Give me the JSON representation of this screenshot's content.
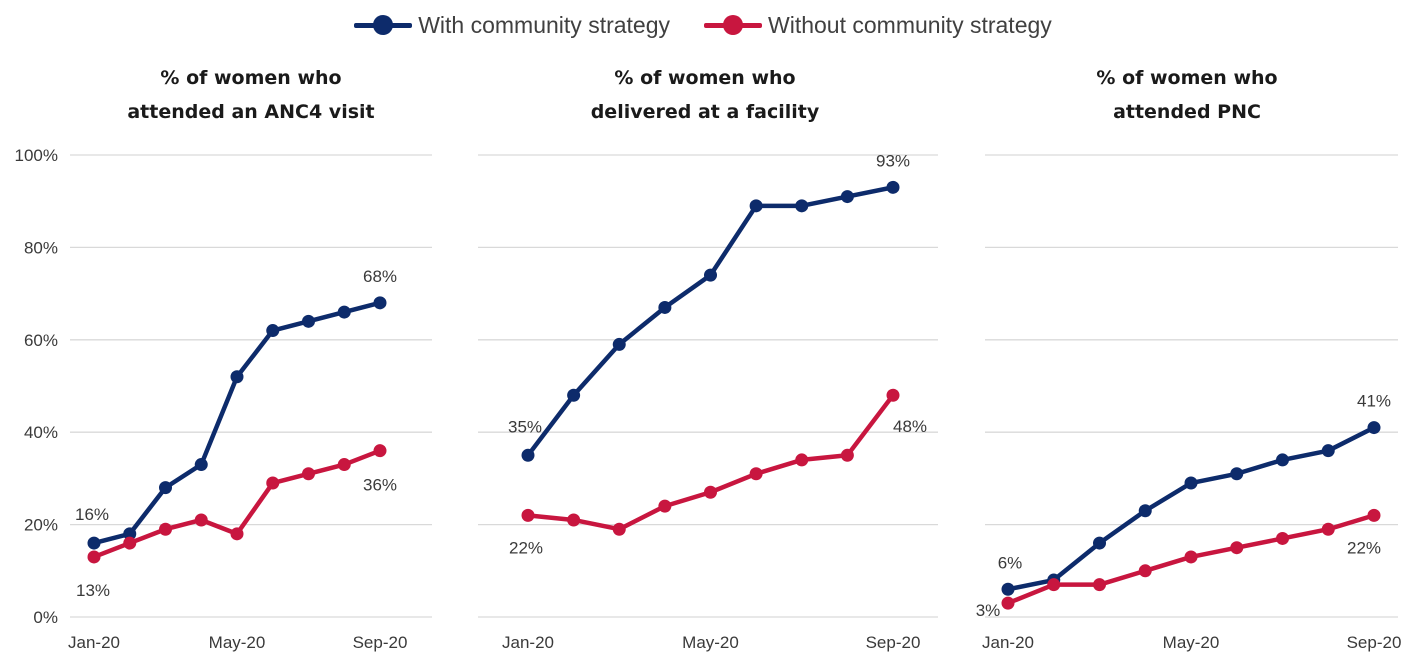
{
  "colors": {
    "with": "#0d2b6b",
    "without": "#c8163f",
    "grid": "#d9d9d9"
  },
  "legend": [
    {
      "label": "With community strategy",
      "color": "#0d2b6b"
    },
    {
      "label": "Without community strategy",
      "color": "#c8163f"
    }
  ],
  "chart_data": [
    {
      "type": "line",
      "title": [
        "% of women who",
        "attended an ANC4 visit"
      ],
      "ylim": [
        0,
        100
      ],
      "yticks": [
        "0%",
        "20%",
        "40%",
        "60%",
        "80%",
        "100%"
      ],
      "x": [
        "Jan-20",
        "Feb-20",
        "Mar-20",
        "Apr-20",
        "May-20",
        "Jun-20",
        "Jul-20",
        "Aug-20",
        "Sep-20"
      ],
      "xtick_labels": [
        "Jan-20",
        "May-20",
        "Sep-20"
      ],
      "series": [
        {
          "name": "With community strategy",
          "values": [
            16,
            18,
            28,
            33,
            52,
            62,
            64,
            66,
            68
          ]
        },
        {
          "name": "Without community strategy",
          "values": [
            13,
            16,
            19,
            21,
            18,
            29,
            31,
            33,
            36
          ]
        }
      ],
      "annotations": [
        {
          "series": 0,
          "index": 0,
          "text": "16%"
        },
        {
          "series": 0,
          "index": 8,
          "text": "68%"
        },
        {
          "series": 1,
          "index": 0,
          "text": "13%"
        },
        {
          "series": 1,
          "index": 8,
          "text": "36%"
        }
      ]
    },
    {
      "type": "line",
      "title": [
        "% of women who",
        "delivered at a facility"
      ],
      "ylim": [
        0,
        100
      ],
      "x": [
        "Jan-20",
        "Feb-20",
        "Mar-20",
        "Apr-20",
        "May-20",
        "Jun-20",
        "Jul-20",
        "Aug-20",
        "Sep-20"
      ],
      "xtick_labels": [
        "Jan-20",
        "May-20",
        "Sep-20"
      ],
      "series": [
        {
          "name": "With community strategy",
          "values": [
            35,
            48,
            59,
            67,
            74,
            89,
            89,
            91,
            93
          ]
        },
        {
          "name": "Without community strategy",
          "values": [
            22,
            21,
            19,
            24,
            27,
            31,
            34,
            35,
            48
          ]
        }
      ],
      "annotations": [
        {
          "series": 0,
          "index": 0,
          "text": "35%"
        },
        {
          "series": 0,
          "index": 8,
          "text": "93%"
        },
        {
          "series": 1,
          "index": 0,
          "text": "22%"
        },
        {
          "series": 1,
          "index": 8,
          "text": "48%"
        }
      ]
    },
    {
      "type": "line",
      "title": [
        "% of women who",
        "attended PNC"
      ],
      "ylim": [
        0,
        100
      ],
      "x": [
        "Jan-20",
        "Feb-20",
        "Mar-20",
        "Apr-20",
        "May-20",
        "Jun-20",
        "Jul-20",
        "Aug-20",
        "Sep-20"
      ],
      "xtick_labels": [
        "Jan-20",
        "May-20",
        "Sep-20"
      ],
      "series": [
        {
          "name": "With community strategy",
          "values": [
            6,
            8,
            16,
            23,
            29,
            31,
            34,
            36,
            41
          ]
        },
        {
          "name": "Without community strategy",
          "values": [
            3,
            7,
            7,
            10,
            13,
            15,
            17,
            19,
            22
          ]
        }
      ],
      "annotations": [
        {
          "series": 0,
          "index": 0,
          "text": "6%"
        },
        {
          "series": 0,
          "index": 8,
          "text": "41%"
        },
        {
          "series": 1,
          "index": 0,
          "text": "3%"
        },
        {
          "series": 1,
          "index": 8,
          "text": "22%"
        }
      ]
    }
  ]
}
